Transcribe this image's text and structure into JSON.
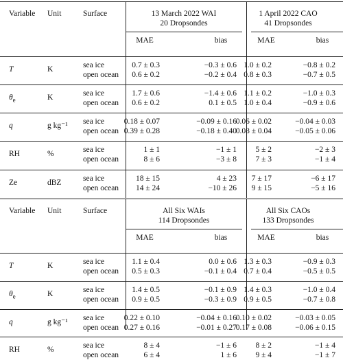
{
  "header_cols": {
    "variable": "Variable",
    "unit": "Unit",
    "surface": "Surface",
    "mae": "MAE",
    "bias": "bias"
  },
  "top": {
    "group1": {
      "line1": "13 March 2022 WAI",
      "line2": "20 Dropsondes"
    },
    "group2": {
      "line1": "1 April 2022 CAO",
      "line2": "41 Dropsondes"
    },
    "rows": [
      {
        "var": "T",
        "var_sub": "",
        "unit": "K",
        "si": {
          "m1": "0.7 ± 0.3",
          "b1": "−0.3 ± 0.6",
          "m2": "1.0 ± 0.2",
          "b2": "−0.8 ± 0.2"
        },
        "oo": {
          "m1": "0.6 ± 0.2",
          "b1": "−0.2 ± 0.4",
          "m2": "0.8 ± 0.3",
          "b2": "−0.7 ± 0.5"
        }
      },
      {
        "var": "θ",
        "var_sub": "e",
        "unit": "K",
        "si": {
          "m1": "1.7 ± 0.6",
          "b1": "−1.4 ± 0.6",
          "m2": "1.1 ± 0.2",
          "b2": "−1.0 ± 0.3"
        },
        "oo": {
          "m1": "0.6 ± 0.2",
          "b1": "0.1 ± 0.5",
          "m2": "1.0 ± 0.4",
          "b2": "−0.9 ± 0.6"
        }
      },
      {
        "var": "q",
        "var_sub": "",
        "unit": "g kg⁻¹",
        "si": {
          "m1": "0.18 ± 0.07",
          "b1": "−0.09 ± 0.16",
          "m2": "0.06 ± 0.02",
          "b2": "−0.04 ± 0.03"
        },
        "oo": {
          "m1": "0.39 ± 0.28",
          "b1": "−0.18 ± 0.40",
          "m2": "0.08 ± 0.04",
          "b2": "−0.05 ± 0.06"
        }
      },
      {
        "var": "RH",
        "var_sub": "",
        "unit": "%",
        "si": {
          "m1": "1 ± 1",
          "b1": "−1 ± 1",
          "m2": "5 ± 2",
          "b2": "−2 ± 3"
        },
        "oo": {
          "m1": "8 ± 6",
          "b1": "−3 ± 8",
          "m2": "7 ± 3",
          "b2": "−1 ± 4"
        }
      },
      {
        "var": "Ze",
        "var_sub": "",
        "unit": "dBZ",
        "si": {
          "m1": "18 ± 15",
          "b1": "4 ± 23",
          "m2": "7 ± 17",
          "b2": "−6 ± 17"
        },
        "oo": {
          "m1": "14 ± 24",
          "b1": "−10 ± 26",
          "m2": "9 ± 15",
          "b2": "−5 ± 16"
        }
      }
    ]
  },
  "bottom": {
    "group1": {
      "line1": "All Six WAIs",
      "line2": "114 Dropsondes"
    },
    "group2": {
      "line1": "All Six CAOs",
      "line2": "133 Dropsondes"
    },
    "rows": [
      {
        "var": "T",
        "var_sub": "",
        "unit": "K",
        "si": {
          "m1": "1.1 ± 0.4",
          "b1": "0.0 ± 0.6",
          "m2": "1.3 ± 0.3",
          "b2": "−0.9 ± 0.3"
        },
        "oo": {
          "m1": "0.5 ± 0.3",
          "b1": "−0.1 ± 0.4",
          "m2": "0.7 ± 0.4",
          "b2": "−0.5 ± 0.5"
        }
      },
      {
        "var": "θ",
        "var_sub": "e",
        "unit": "K",
        "si": {
          "m1": "1.4 ± 0.5",
          "b1": "−0.1 ± 0.9",
          "m2": "1.4 ± 0.3",
          "b2": "−1.0 ± 0.4"
        },
        "oo": {
          "m1": "0.9 ± 0.5",
          "b1": "−0.3 ± 0.9",
          "m2": "0.9 ± 0.5",
          "b2": "−0.7 ± 0.8"
        }
      },
      {
        "var": "q",
        "var_sub": "",
        "unit": "g kg⁻¹",
        "si": {
          "m1": "0.22 ± 0.10",
          "b1": "−0.04 ± 0.16",
          "m2": "0.10 ± 0.02",
          "b2": "−0.03 ± 0.05"
        },
        "oo": {
          "m1": "0.27 ± 0.16",
          "b1": "−0.01 ± 0.27",
          "m2": "0.17 ± 0.08",
          "b2": "−0.06 ± 0.15"
        }
      },
      {
        "var": "RH",
        "var_sub": "",
        "unit": "%",
        "si": {
          "m1": "8 ± 4",
          "b1": "−1 ± 6",
          "m2": "8 ± 2",
          "b2": "−1 ± 4"
        },
        "oo": {
          "m1": "6 ± 4",
          "b1": "1 ± 6",
          "m2": "9 ± 4",
          "b2": "−1 ± 7"
        }
      }
    ]
  },
  "surfaces": {
    "sea_ice": "sea ice",
    "open_ocean": "open ocean"
  }
}
